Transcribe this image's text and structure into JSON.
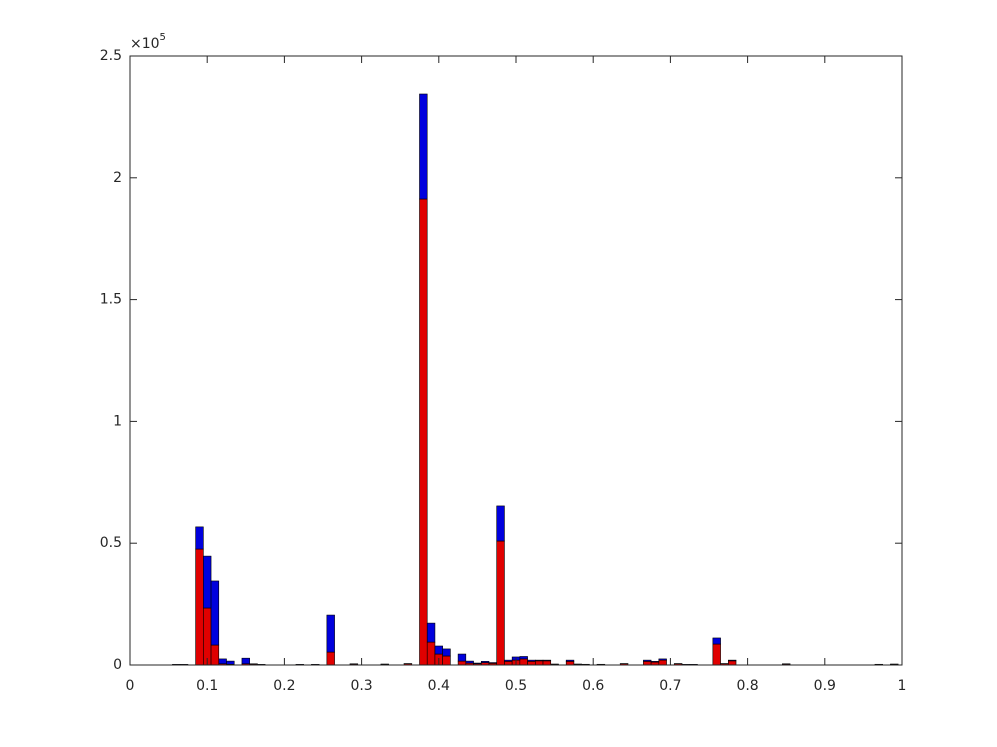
{
  "chart_data": {
    "type": "stacked_bar",
    "x": [
      0.06,
      0.07,
      0.09,
      0.1,
      0.11,
      0.12,
      0.13,
      0.15,
      0.16,
      0.17,
      0.22,
      0.24,
      0.26,
      0.29,
      0.33,
      0.36,
      0.38,
      0.39,
      0.4,
      0.41,
      0.43,
      0.44,
      0.45,
      0.46,
      0.47,
      0.48,
      0.49,
      0.5,
      0.51,
      0.52,
      0.53,
      0.54,
      0.55,
      0.57,
      0.58,
      0.59,
      0.61,
      0.64,
      0.67,
      0.68,
      0.69,
      0.71,
      0.72,
      0.73,
      0.76,
      0.77,
      0.78,
      0.85,
      0.97,
      0.99
    ],
    "series": [
      {
        "color": "#e00000",
        "values": [
          0.002,
          0.002,
          0.476,
          0.234,
          0.082,
          0.005,
          0.003,
          0.005,
          0.004,
          0.002,
          0.002,
          0.002,
          0.053,
          0.004,
          0.003,
          0.005,
          1.913,
          0.094,
          0.045,
          0.037,
          0.016,
          0.008,
          0.005,
          0.01,
          0.007,
          0.509,
          0.015,
          0.02,
          0.025,
          0.015,
          0.017,
          0.017,
          0.003,
          0.015,
          0.003,
          0.002,
          0.002,
          0.005,
          0.015,
          0.012,
          0.02,
          0.005,
          0.002,
          0.002,
          0.086,
          0.005,
          0.017,
          0.004,
          0.002,
          0.003
        ]
      },
      {
        "color": "#0000dd",
        "values": [
          0.0005,
          0.0005,
          0.091,
          0.213,
          0.263,
          0.02,
          0.013,
          0.023,
          0.001,
          0.0005,
          0.0005,
          0.0005,
          0.152,
          0.001,
          0.001,
          0.001,
          0.431,
          0.078,
          0.033,
          0.029,
          0.029,
          0.008,
          0.003,
          0.005,
          0.003,
          0.144,
          0.005,
          0.013,
          0.01,
          0.005,
          0.003,
          0.003,
          0.001,
          0.005,
          0.001,
          0.001,
          0.001,
          0.001,
          0.005,
          0.003,
          0.005,
          0.001,
          0.0005,
          0.0005,
          0.025,
          0.001,
          0.003,
          0.001,
          0.001,
          0.001
        ]
      }
    ],
    "xlim": [
      0,
      1
    ],
    "xticks": [
      0,
      0.1,
      0.2,
      0.3,
      0.4,
      0.5,
      0.6,
      0.7,
      0.8,
      0.9,
      1
    ],
    "ylim": [
      0,
      2.5
    ],
    "yticks": [
      0,
      0.5,
      1,
      1.5,
      2,
      2.5
    ],
    "y_multiplier_base": "×10",
    "y_multiplier_exponent": "5",
    "grid": false
  }
}
